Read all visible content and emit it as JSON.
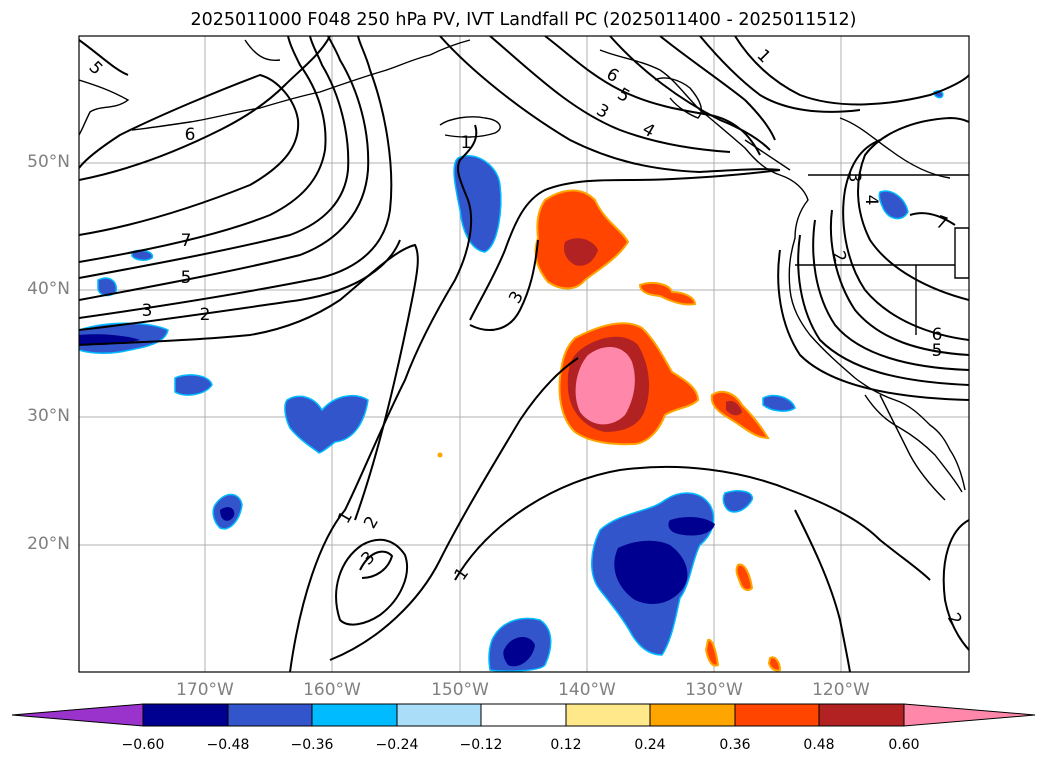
{
  "title": "2025011000 F048 250 hPa PV, IVT Landfall PC (2025011400 - 2025011512)",
  "lat_labels": [
    "50°N",
    "40°N",
    "30°N",
    "20°N"
  ],
  "lon_labels": [
    "170°W",
    "160°W",
    "150°W",
    "140°W",
    "130°W",
    "120°W"
  ],
  "colorbar": {
    "ticks": [
      "−0.60",
      "−0.48",
      "−0.36",
      "−0.24",
      "−0.12",
      "0.12",
      "0.24",
      "0.36",
      "0.48",
      "0.60"
    ],
    "colors": [
      "#9933cc",
      "#000090",
      "#3355cc",
      "#00bbff",
      "#aaddf7",
      "#ffffff",
      "#ffe88a",
      "#ffa500",
      "#ff4500",
      "#b22222",
      "#ff88aa"
    ]
  },
  "contour_labels": [
    "5",
    "6",
    "7",
    "5",
    "3",
    "2",
    "1",
    "3",
    "6",
    "5",
    "3",
    "4",
    "1",
    "3",
    "4",
    "2",
    "7",
    "6",
    "5",
    "1",
    "2",
    "3",
    "1",
    "2"
  ]
}
